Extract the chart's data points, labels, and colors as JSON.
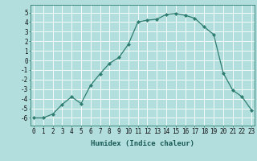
{
  "title": "",
  "xlabel": "Humidex (Indice chaleur)",
  "x": [
    0,
    1,
    2,
    3,
    4,
    5,
    6,
    7,
    8,
    9,
    10,
    11,
    12,
    13,
    14,
    15,
    16,
    17,
    18,
    19,
    20,
    21,
    22,
    23
  ],
  "y": [
    -6.0,
    -6.0,
    -5.6,
    -4.6,
    -3.8,
    -4.5,
    -2.6,
    -1.4,
    -0.3,
    0.3,
    1.7,
    4.0,
    4.2,
    4.3,
    4.8,
    4.9,
    4.7,
    4.4,
    3.5,
    2.7,
    -1.3,
    -3.1,
    -3.8,
    -5.2
  ],
  "line_color": "#2e7d70",
  "marker": "D",
  "marker_size": 2.0,
  "bg_color": "#b2dede",
  "grid_color": "#ffffff",
  "ylim": [
    -6.8,
    5.8
  ],
  "xlim": [
    -0.3,
    23.3
  ],
  "yticks": [
    -6,
    -5,
    -4,
    -3,
    -2,
    -1,
    0,
    1,
    2,
    3,
    4,
    5
  ],
  "xticks": [
    0,
    1,
    2,
    3,
    4,
    5,
    6,
    7,
    8,
    9,
    10,
    11,
    12,
    13,
    14,
    15,
    16,
    17,
    18,
    19,
    20,
    21,
    22,
    23
  ],
  "tick_fontsize": 5.5,
  "xlabel_fontsize": 6.5,
  "linewidth": 0.9
}
